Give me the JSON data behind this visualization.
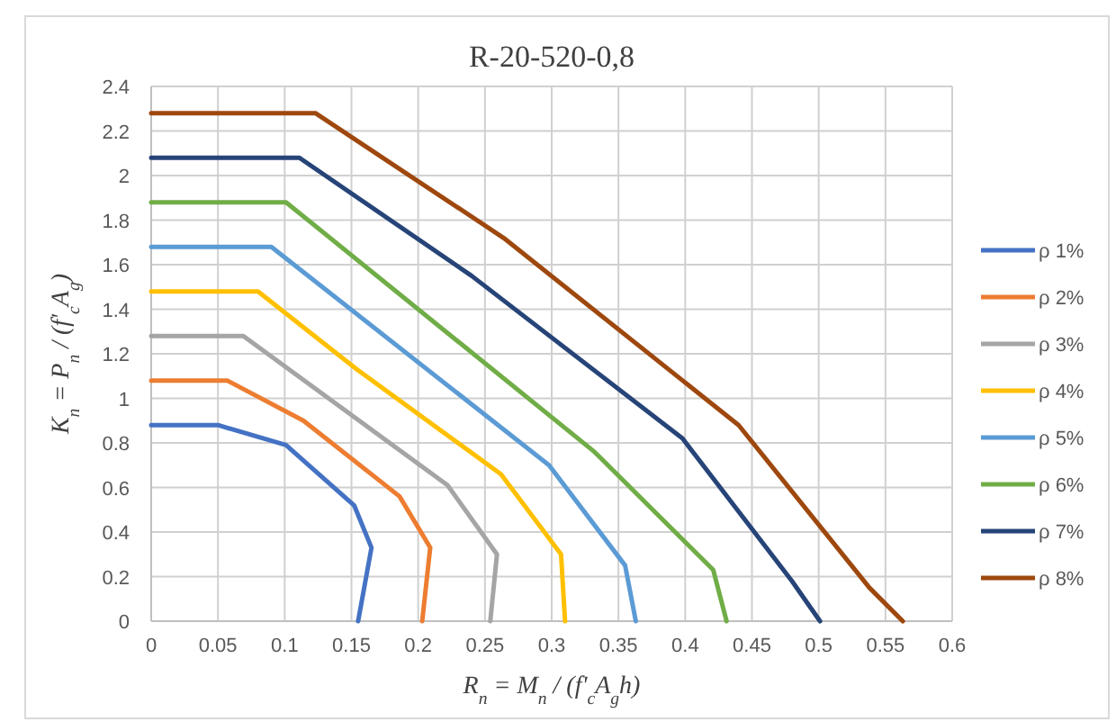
{
  "chart_data": {
    "type": "line",
    "title": "R-20-520-0,8",
    "xlabel": "R$_{n}$ = M$_{n}$ / (f'$_{c}$A$_{g}$h)",
    "ylabel": "K$_{n}$ = P$_{n}$ / (f'$_{c}$A$_{g}$)",
    "xlim": [
      0,
      0.6
    ],
    "xticks": [
      0,
      0.05,
      0.1,
      0.15,
      0.2,
      0.25,
      0.3,
      0.35,
      0.4,
      0.45,
      0.5,
      0.55,
      0.6
    ],
    "ylim": [
      0,
      2.4
    ],
    "yticks": [
      0,
      0.2,
      0.4,
      0.6,
      0.8,
      1,
      1.2,
      1.4,
      1.6,
      1.8,
      2,
      2.2,
      2.4
    ],
    "grid": true,
    "legend": "right",
    "marker": "none",
    "line_style": "solid",
    "series": [
      {
        "name": "ρ 1%",
        "color": "#4472c4",
        "x": [
          0,
          0.05,
          0.101,
          0.152,
          0.165,
          0.155
        ],
        "values": [
          0.88,
          0.88,
          0.79,
          0.52,
          0.33,
          0
        ]
      },
      {
        "name": "ρ 2%",
        "color": "#ed7d31",
        "x": [
          0,
          0.057,
          0.114,
          0.186,
          0.209,
          0.203
        ],
        "values": [
          1.08,
          1.08,
          0.9,
          0.56,
          0.33,
          0
        ]
      },
      {
        "name": "ρ 3%",
        "color": "#a5a5a5",
        "x": [
          0,
          0.069,
          0.222,
          0.259,
          0.254
        ],
        "values": [
          1.28,
          1.28,
          0.61,
          0.3,
          0
        ]
      },
      {
        "name": "ρ 4%",
        "color": "#ffc000",
        "x": [
          0,
          0.08,
          0.154,
          0.262,
          0.307,
          0.31
        ],
        "values": [
          1.48,
          1.48,
          1.13,
          0.66,
          0.3,
          0
        ]
      },
      {
        "name": "ρ 5%",
        "color": "#5b9bd5",
        "x": [
          0,
          0.09,
          0.298,
          0.355,
          0.363
        ],
        "values": [
          1.68,
          1.68,
          0.7,
          0.25,
          0
        ]
      },
      {
        "name": "ρ 6%",
        "color": "#70ad47",
        "x": [
          0,
          0.101,
          0.332,
          0.421,
          0.431
        ],
        "values": [
          1.88,
          1.88,
          0.76,
          0.23,
          0
        ]
      },
      {
        "name": "ρ 7%",
        "color": "#264478",
        "x": [
          0,
          0.111,
          0.24,
          0.398,
          0.48,
          0.501
        ],
        "values": [
          2.08,
          2.08,
          1.55,
          0.82,
          0.18,
          0
        ]
      },
      {
        "name": "ρ 8%",
        "color": "#9e480e",
        "x": [
          0,
          0.123,
          0.264,
          0.44,
          0.538,
          0.563
        ],
        "values": [
          2.28,
          2.28,
          1.72,
          0.88,
          0.15,
          0
        ]
      }
    ]
  }
}
